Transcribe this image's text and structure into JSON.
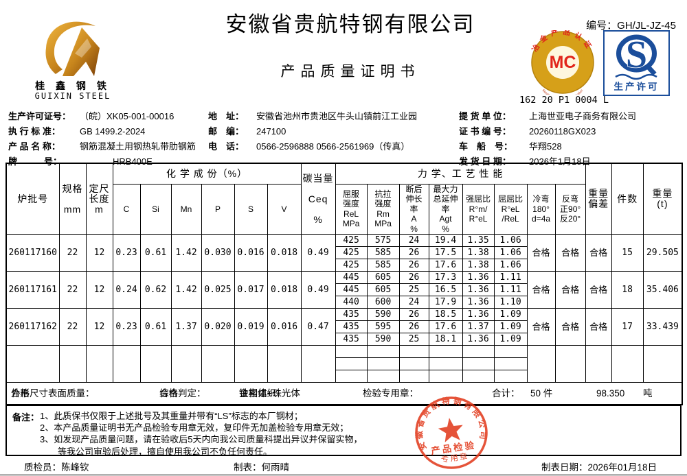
{
  "colors": {
    "stamp_red": "#e23c1e",
    "mc_gold": "#d6a019",
    "mc_red": "#e1251b",
    "qs_blue": "#1b4e9b",
    "logo_gold": "#c8861d"
  },
  "header": {
    "company_name": "安徽省贵航特钢有限公司",
    "doc_title": "产品质量证明书",
    "serial_label": "编号：",
    "serial_value": "GH/JL-JZ-45"
  },
  "logo": {
    "name_cn": "桂 鑫 钢 铁",
    "name_en": "GUIXIN STEEL"
  },
  "mc_badge": {
    "letters": "MC",
    "arc_top": "冶金产品认证",
    "arc_bottom": "Metallurgical Product Certification",
    "code": "162 20 P1 0004 L"
  },
  "qs_badge": {
    "letter": "S",
    "label": "生产许可"
  },
  "info": {
    "col1": [
      {
        "label": "生产许可证号：",
        "value": "（皖）XK05-001-00016"
      },
      {
        "label": "执 行 标 准：",
        "value": "GB 1499.2-2024"
      },
      {
        "label": "产 品 名 称：",
        "value": "钢筋混凝土用钢热轧带肋钢筋"
      },
      {
        "label": "牌　　　号：",
        "value": "HRB400E"
      }
    ],
    "col2": [
      {
        "label": "地　址：",
        "value": "安徽省池州市贵池区牛头山镇前江工业园"
      },
      {
        "label": "邮　编：",
        "value": "247100"
      },
      {
        "label": "电　话：",
        "value": "0566-2596888  0566-2561969（传真）"
      }
    ],
    "col3": [
      {
        "label": "提 货 单 位：",
        "value": "上海世亚电子商务有限公司"
      },
      {
        "label": "证 书 编 号：",
        "value": "20260118GX023"
      },
      {
        "label": "车　船　号：",
        "value": "华翔528"
      },
      {
        "label": "发 货 日 期：",
        "value": "2026年1月18日"
      }
    ]
  },
  "table": {
    "headers": {
      "heat_no": "炉批号",
      "size": "规格\n\nmm",
      "length": "定尺\n长度\nm",
      "chem_group": "化 学 成 份（%）",
      "chem": [
        "C",
        "Si",
        "Mn",
        "P",
        "S",
        "V"
      ],
      "ceq": "碳当量\n\nCeq\n\n%",
      "mech_group": "力 学、工 艺 性 能",
      "mech": [
        "屈服\n强度\nReL\nMPa",
        "抗拉\n强度\nRm\nMPa",
        "断后\n伸长\n率\nA\n%",
        "最大力\n总延伸\n率\nAgt\n%",
        "强屈比\nR°m/\nR°eL",
        "屈屈比\nR°eL\n/ReL",
        "冷弯\n180°\nd=4a",
        "反弯\n正90°\n反20°"
      ],
      "weight_dev": "重量偏差",
      "pieces": "件数",
      "weight": "重量\n(t)"
    },
    "batches": [
      {
        "heat_no": "260117160",
        "size": "22",
        "length": "12",
        "chem": [
          "0.23",
          "0.61",
          "1.42",
          "0.030",
          "0.016",
          "0.018"
        ],
        "ceq": "0.49",
        "mech": [
          [
            "425",
            "575",
            "24",
            "19.4",
            "1.35",
            "1.06"
          ],
          [
            "425",
            "585",
            "26",
            "17.5",
            "1.38",
            "1.06"
          ],
          [
            "425",
            "585",
            "26",
            "17.6",
            "1.38",
            "1.06"
          ]
        ],
        "cold_bend": "合格",
        "reverse_bend": "合格",
        "weight_dev": "合格",
        "pieces": "15",
        "weight": "29.505"
      },
      {
        "heat_no": "260117161",
        "size": "22",
        "length": "12",
        "chem": [
          "0.24",
          "0.62",
          "1.42",
          "0.025",
          "0.017",
          "0.018"
        ],
        "ceq": "0.49",
        "mech": [
          [
            "445",
            "605",
            "26",
            "17.3",
            "1.36",
            "1.11"
          ],
          [
            "445",
            "605",
            "25",
            "16.5",
            "1.36",
            "1.11"
          ],
          [
            "440",
            "600",
            "24",
            "17.9",
            "1.36",
            "1.10"
          ]
        ],
        "cold_bend": "合格",
        "reverse_bend": "合格",
        "weight_dev": "合格",
        "pieces": "18",
        "weight": "35.406"
      },
      {
        "heat_no": "260117162",
        "size": "22",
        "length": "12",
        "chem": [
          "0.23",
          "0.61",
          "1.37",
          "0.020",
          "0.019",
          "0.016"
        ],
        "ceq": "0.47",
        "mech": [
          [
            "435",
            "590",
            "26",
            "18.5",
            "1.36",
            "1.09"
          ],
          [
            "435",
            "595",
            "26",
            "17.6",
            "1.37",
            "1.09"
          ],
          [
            "435",
            "590",
            "25",
            "18.1",
            "1.36",
            "1.09"
          ]
        ],
        "cold_bend": "合格",
        "reverse_bend": "合格",
        "weight_dev": "合格",
        "pieces": "17",
        "weight": "33.439"
      },
      {
        "heat_no": "",
        "size": "",
        "length": "",
        "chem": [
          "",
          "",
          "",
          "",
          "",
          ""
        ],
        "ceq": "",
        "mech": [
          [
            "",
            "",
            "",
            "",
            "",
            ""
          ],
          [
            "",
            "",
            "",
            "",
            "",
            ""
          ],
          [
            "",
            "",
            "",
            "",
            "",
            ""
          ]
        ],
        "cold_bend": "",
        "reverse_bend": "",
        "weight_dev": "",
        "pieces": "",
        "weight": ""
      }
    ]
  },
  "summary": {
    "shape_label": "外形尺寸表面质量：",
    "shape_value": "合格",
    "overall_label": "综合判定：",
    "overall_value": "合格",
    "metallography_label": "金相组织：",
    "metallography_value": "铁素体+珠光体",
    "stamp_label": "检验专用章：",
    "total_label": "合计：",
    "total_pieces": "50 件",
    "total_weight": "98.350",
    "total_weight_unit": "吨"
  },
  "stamp": {
    "company": "安徽省贵航特钢有限公司",
    "line1": "产品检验",
    "line2": "专用章"
  },
  "remarks": {
    "label": "备注：",
    "lines": "1、此质保书仅限于上述批号及其重量并带有“LS”标志的本厂钢材；\n2、本产品质量证明书无产品检验专用章无效，复印件无加盖检验专用章无效；\n3、如发现产品质量问题，请在验收后5天内向我公司质量科提出异议并保留实物，\n　　等我公司审验后处理，擅自使用我公司不负任何责任。"
  },
  "footer": {
    "inspector_label": "质检员：",
    "inspector": "陈峰钦",
    "tabulator_label": "制表：",
    "tabulator": "何雨晴",
    "date_label": "制表日期：",
    "date": "2026年01月18日"
  }
}
